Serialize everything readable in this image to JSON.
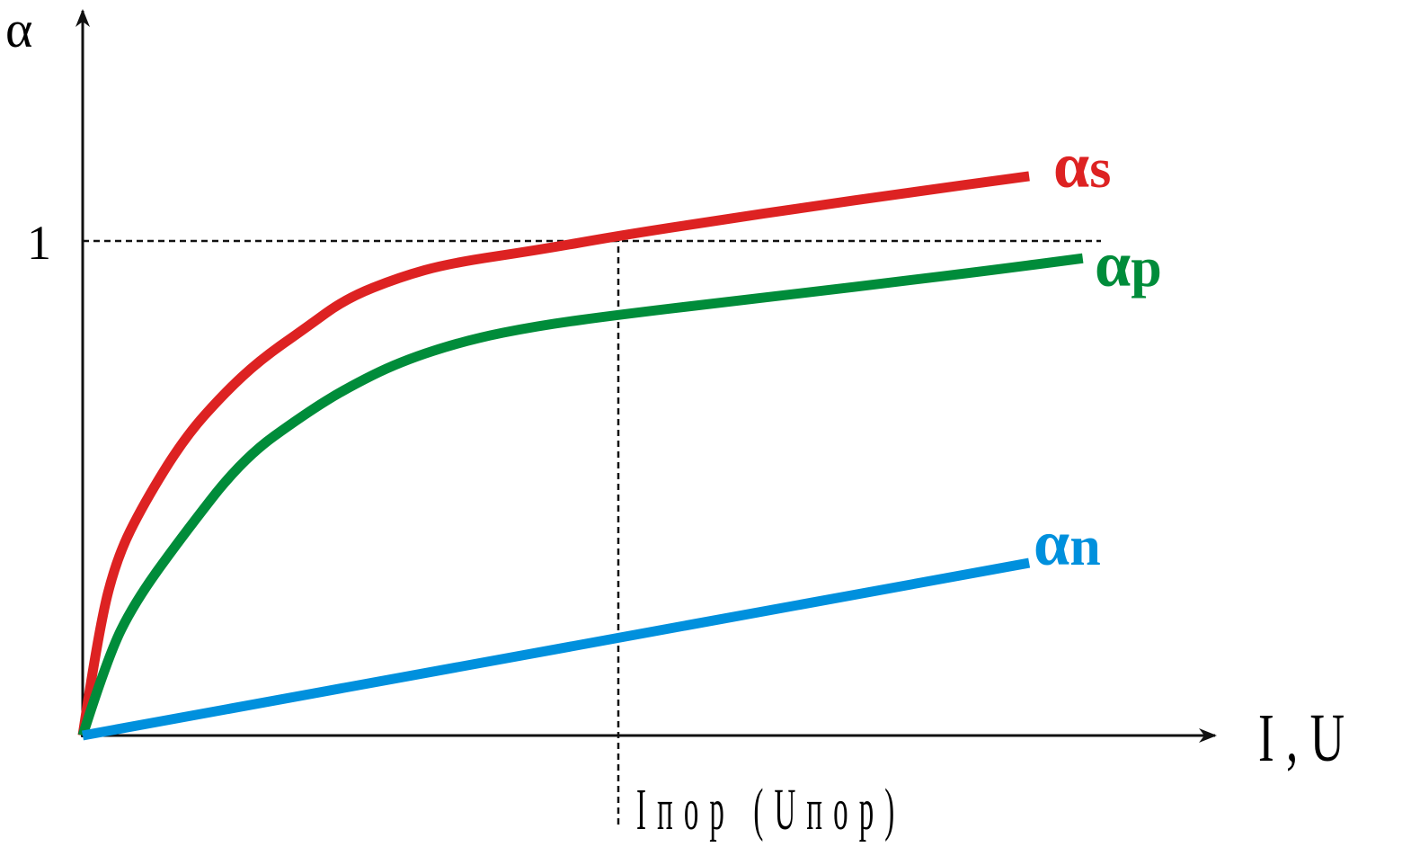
{
  "chart_data": {
    "type": "line",
    "title": "",
    "xlabel": "I , U",
    "ylabel": "α",
    "xlim": [
      0,
      2.12
    ],
    "ylim": [
      0,
      1.47
    ],
    "y_ticks": [
      {
        "value": 1,
        "label": "1"
      }
    ],
    "threshold": {
      "x": 1,
      "label": "Iпор (Uпор)"
    },
    "grid": false,
    "series": [
      {
        "name": "αs",
        "label_main": "α",
        "label_sub": "s",
        "color": "#dd2222",
        "x": [
          0,
          0.03,
          0.064,
          0.114,
          0.19,
          0.265,
          0.332,
          0.416,
          0.492,
          0.592,
          0.685,
          0.852,
          1.003,
          1.188,
          1.356,
          1.523,
          1.767
        ],
        "y": [
          0,
          0.215,
          0.36,
          0.469,
          0.602,
          0.693,
          0.76,
          0.824,
          0.884,
          0.927,
          0.955,
          0.982,
          1.011,
          1.042,
          1.069,
          1.095,
          1.131
        ]
      },
      {
        "name": "αp",
        "label_main": "α",
        "label_sub": "p",
        "color": "#008c3a",
        "x": [
          0,
          0.047,
          0.097,
          0.181,
          0.299,
          0.416,
          0.492,
          0.592,
          0.718,
          0.852,
          1.003,
          1.188,
          1.356,
          1.523,
          1.691,
          1.867
        ],
        "y": [
          0,
          0.16,
          0.269,
          0.396,
          0.56,
          0.651,
          0.702,
          0.756,
          0.8,
          0.829,
          0.851,
          0.875,
          0.896,
          0.918,
          0.94,
          0.965
        ]
      },
      {
        "name": "αn",
        "label_main": "α",
        "label_sub": "n",
        "color": "#0090dd",
        "x": [
          0,
          1.767
        ],
        "y": [
          0,
          0.349
        ]
      }
    ]
  }
}
